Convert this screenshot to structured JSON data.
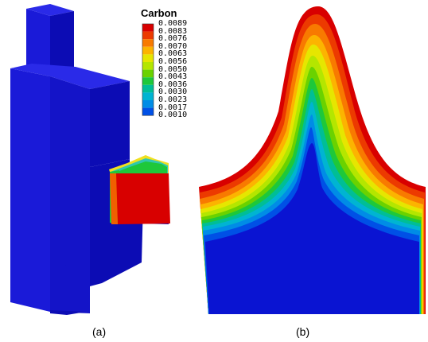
{
  "legend": {
    "title": "Carbon",
    "labels": [
      "0.0089",
      "0.0083",
      "0.0076",
      "0.0070",
      "0.0063",
      "0.0056",
      "0.0050",
      "0.0043",
      "0.0036",
      "0.0030",
      "0.0023",
      "0.0017",
      "0.0010"
    ],
    "colors": [
      "#d80000",
      "#ec3a00",
      "#f87a00",
      "#fcb400",
      "#e6e600",
      "#b4e600",
      "#6ad200",
      "#1ec83a",
      "#00be96",
      "#00b4d2",
      "#008ce6",
      "#0050e6",
      "#0a14d2"
    ]
  },
  "captions": {
    "a": "(a)",
    "b": "(b)"
  }
}
